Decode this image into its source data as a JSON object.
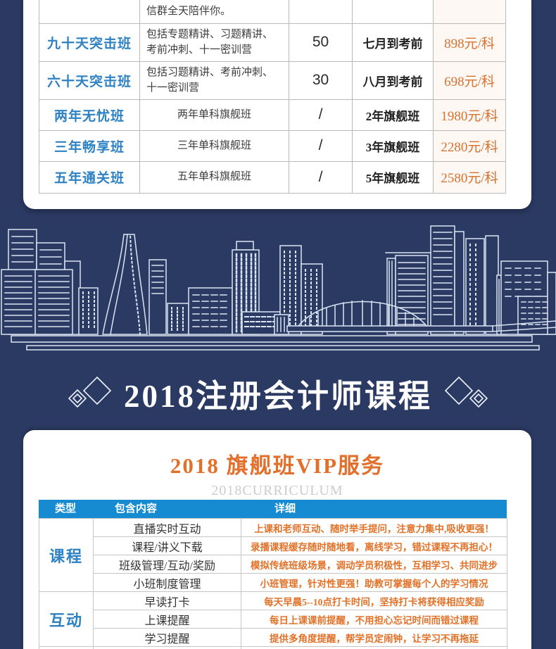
{
  "colors": {
    "background_navy": "#2b3a63",
    "class_name_blue": "#2e82c4",
    "price_orange": "#d9712f",
    "vip_title_orange": "#e2702c",
    "detail_orange": "#e0722a",
    "table_header_blue": "#168bd2",
    "skyline_line": "#dbe4f2"
  },
  "course_table": {
    "rows": [
      {
        "name": "",
        "description": "信群全天陪伴你。",
        "count": "",
        "period": "",
        "price": ""
      },
      {
        "name": "九十天突击班",
        "description": "包括专题精讲、习题精讲、考前冲刺、十一密训营",
        "count": "50",
        "period": "七月到考前",
        "price": "898元/科"
      },
      {
        "name": "六十天突击班",
        "description": "包括习题精讲、考前冲刺、十一密训营",
        "count": "30",
        "period": "八月到考前",
        "price": "698元/科"
      },
      {
        "name": "两年无忧班",
        "description": "两年单科旗舰班",
        "count": "/",
        "period": "2年旗舰班",
        "price": "1980元/科"
      },
      {
        "name": "三年畅享班",
        "description": "三年单科旗舰班",
        "count": "/",
        "period": "3年旗舰班",
        "price": "2280元/科"
      },
      {
        "name": "五年通关班",
        "description": "五年单科旗舰班",
        "count": "/",
        "period": "5年旗舰班",
        "price": "2580元/科"
      }
    ]
  },
  "section_title": "2018注册会计师课程",
  "vip": {
    "title": "2018 旗舰班VIP服务",
    "subtitle": "2018CURRICULUM",
    "table": {
      "headers": [
        "类型",
        "包含内容",
        "详细"
      ],
      "groups": [
        {
          "type": "课程",
          "items": [
            {
              "content": "直播实时互动",
              "detail": "上课和老师互动、随时举手提问，注意力集中,吸收更强！"
            },
            {
              "content": "课程/讲义下载",
              "detail": "录播课程缓存随时随地看，离线学习，错过课程不再担心！"
            },
            {
              "content": "班级管理/互动/奖励",
              "detail": "模拟传统班级场景，调动学员积极性，互相学习、共同进步"
            },
            {
              "content": "小班制度管理",
              "detail": "小班管理，针对性更强！助教可掌握每个人的学习情况"
            }
          ]
        },
        {
          "type": "互动",
          "items": [
            {
              "content": "早读打卡",
              "detail": "每天早晨5--10点打卡时间，坚持打卡将获得相应奖励"
            },
            {
              "content": "上课提醒",
              "detail": "每日上课课前提醒，不用担心忘记时间而错过课程"
            },
            {
              "content": "学习提醒",
              "detail": "提供多角度提醒，帮学员定闹钟，让学习不再拖延"
            }
          ]
        },
        {
          "type": "",
          "items": [
            {
              "content": "",
              "detail": ""
            }
          ]
        }
      ]
    }
  }
}
